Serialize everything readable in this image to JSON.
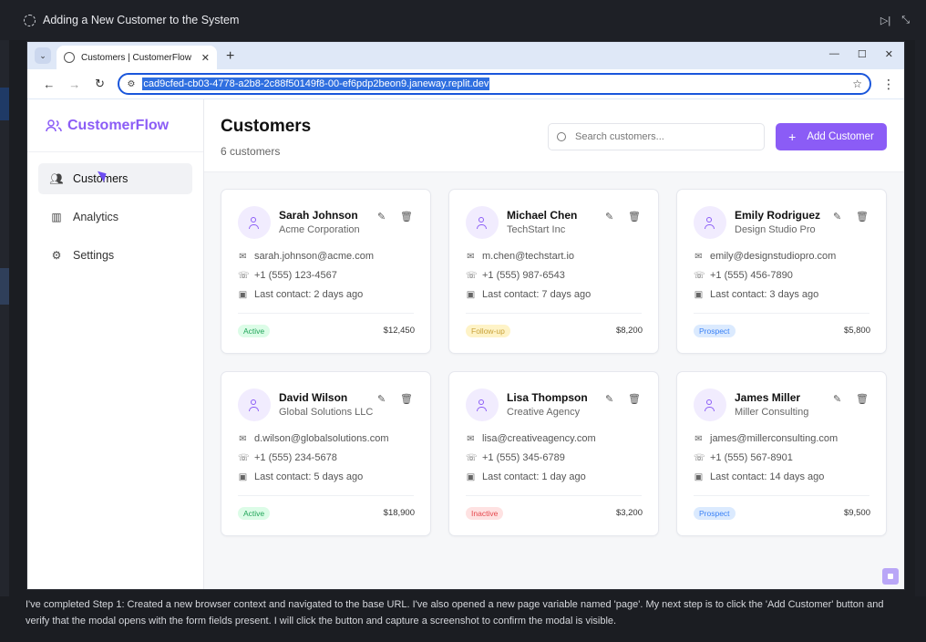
{
  "agent": {
    "title": "Adding a New Customer to the System",
    "message": "I've completed Step 1: Created a new browser context and navigated to the base URL. I've also opened a new page variable named 'page'. My next step is to click the 'Add Customer' button and verify that the modal opens with the form fields present. I will click the button and capture a screenshot to confirm the modal is visible."
  },
  "browser": {
    "tab_title": "Customers | CustomerFlow",
    "url": "cad9cfed-cb03-4778-a2b8-2c88f50149f8-00-ef6pdp2beon9.janeway.replit.dev"
  },
  "app": {
    "brand": "CustomerFlow",
    "nav": [
      {
        "label": "Customers",
        "icon": "users-icon",
        "active": true
      },
      {
        "label": "Analytics",
        "icon": "bar-chart-icon",
        "active": false
      },
      {
        "label": "Settings",
        "icon": "gear-icon",
        "active": false
      }
    ],
    "page_title": "Customers",
    "page_subtitle": "6 customers",
    "search_placeholder": "Search customers...",
    "add_button": "Add Customer",
    "colors": {
      "accent": "#8b5cf6"
    },
    "customers": [
      {
        "name": "Sarah Johnson",
        "company": "Acme Corporation",
        "email": "sarah.johnson@acme.com",
        "phone": "+1 (555) 123-4567",
        "last_contact": "Last contact: 2 days ago",
        "status": "Active",
        "value": "$12,450"
      },
      {
        "name": "Michael Chen",
        "company": "TechStart Inc",
        "email": "m.chen@techstart.io",
        "phone": "+1 (555) 987-6543",
        "last_contact": "Last contact: 7 days ago",
        "status": "Follow-up",
        "value": "$8,200"
      },
      {
        "name": "Emily Rodriguez",
        "company": "Design Studio Pro",
        "email": "emily@designstudiopro.com",
        "phone": "+1 (555) 456-7890",
        "last_contact": "Last contact: 3 days ago",
        "status": "Prospect",
        "value": "$5,800"
      },
      {
        "name": "David Wilson",
        "company": "Global Solutions LLC",
        "email": "d.wilson@globalsolutions.com",
        "phone": "+1 (555) 234-5678",
        "last_contact": "Last contact: 5 days ago",
        "status": "Active",
        "value": "$18,900"
      },
      {
        "name": "Lisa Thompson",
        "company": "Creative Agency",
        "email": "lisa@creativeagency.com",
        "phone": "+1 (555) 345-6789",
        "last_contact": "Last contact: 1 day ago",
        "status": "Inactive",
        "value": "$3,200"
      },
      {
        "name": "James Miller",
        "company": "Miller Consulting",
        "email": "james@millerconsulting.com",
        "phone": "+1 (555) 567-8901",
        "last_contact": "Last contact: 14 days ago",
        "status": "Prospect",
        "value": "$9,500"
      }
    ],
    "status_colors": {
      "Active": {
        "bg": "#dcfce7",
        "fg": "#22a55a"
      },
      "Follow-up": {
        "bg": "#fef3c7",
        "fg": "#c9a23a"
      },
      "Prospect": {
        "bg": "#dbeafe",
        "fg": "#3b82f6"
      },
      "Inactive": {
        "bg": "#fee2e2",
        "fg": "#e5484d"
      }
    }
  }
}
